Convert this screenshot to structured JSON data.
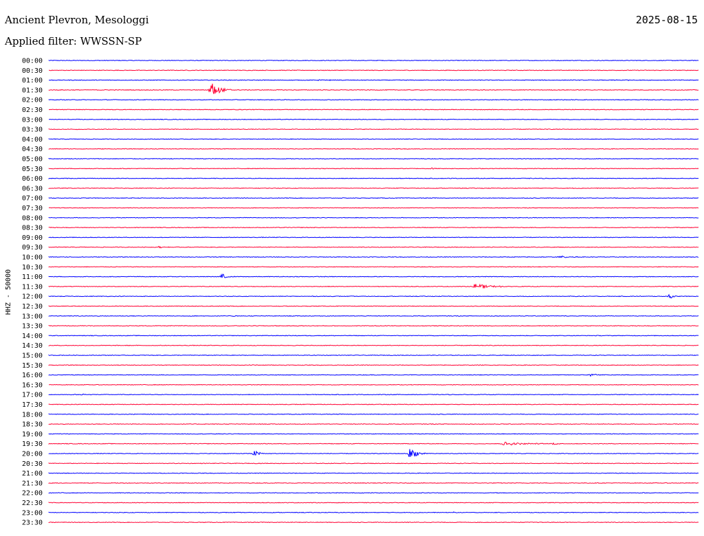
{
  "header": {
    "station": "Ancient Plevron, Mesologgi",
    "date": "2025-08-15",
    "filter": "Applied filter: WWSSN-SP"
  },
  "colors": {
    "blue": "#0000ff",
    "red": "#ff0033"
  },
  "chart_data": {
    "type": "line",
    "title": "Ancient Plevron, Mesologgi",
    "ylabel": "HHZ - 50000",
    "row_labels": [
      "00:00",
      "00:30",
      "01:00",
      "01:30",
      "02:00",
      "02:30",
      "03:00",
      "03:30",
      "04:00",
      "04:30",
      "05:00",
      "05:30",
      "06:00",
      "06:30",
      "07:00",
      "07:30",
      "08:00",
      "08:30",
      "09:00",
      "09:30",
      "10:00",
      "10:30",
      "11:00",
      "11:30",
      "12:00",
      "12:30",
      "13:00",
      "13:30",
      "14:00",
      "14:30",
      "15:00",
      "15:30",
      "16:00",
      "16:30",
      "17:00",
      "17:30",
      "18:00",
      "18:30",
      "19:00",
      "19:30",
      "20:00",
      "20:30",
      "21:00",
      "21:30",
      "22:00",
      "22:30",
      "23:00",
      "23:30"
    ],
    "series": [
      {
        "name": "blue",
        "rows": "even"
      },
      {
        "name": "red",
        "rows": "odd"
      }
    ],
    "row_minutes": 30,
    "events": [
      {
        "row": "01:30",
        "minute": 7.5,
        "amp": 1.75,
        "dur": 1.0
      },
      {
        "row": "01:00",
        "minute": 12.5,
        "amp": 0.1,
        "dur": 0.6
      },
      {
        "row": "01:00",
        "minute": 12.9,
        "amp": 0.1,
        "dur": 0.5
      },
      {
        "row": "01:00",
        "minute": 26.0,
        "amp": 0.15,
        "dur": 0.5
      },
      {
        "row": "01:00",
        "minute": 26.7,
        "amp": 0.15,
        "dur": 0.5
      },
      {
        "row": "03:30",
        "minute": 1.2,
        "amp": 0.15,
        "dur": 0.4
      },
      {
        "row": "05:00",
        "minute": 5.6,
        "amp": 0.1,
        "dur": 0.7
      },
      {
        "row": "05:30",
        "minute": 17.7,
        "amp": 0.15,
        "dur": 0.4
      },
      {
        "row": "09:30",
        "minute": 5.1,
        "amp": 0.2,
        "dur": 0.5
      },
      {
        "row": "10:00",
        "minute": 23.6,
        "amp": 0.25,
        "dur": 1.0
      },
      {
        "row": "11:00",
        "minute": 8.0,
        "amp": 0.6,
        "dur": 0.6
      },
      {
        "row": "11:30",
        "minute": 19.7,
        "amp": 0.7,
        "dur": 1.5
      },
      {
        "row": "12:00",
        "minute": 28.7,
        "amp": 0.6,
        "dur": 0.3
      },
      {
        "row": "13:00",
        "minute": 8.6,
        "amp": 0.3,
        "dur": 0.3
      },
      {
        "row": "15:30",
        "minute": 9.3,
        "amp": 0.1,
        "dur": 1.2
      },
      {
        "row": "16:00",
        "minute": 25.0,
        "amp": 0.3,
        "dur": 1.0
      },
      {
        "row": "17:00",
        "minute": 1.6,
        "amp": 0.15,
        "dur": 0.4
      },
      {
        "row": "19:30",
        "minute": 21.0,
        "amp": 0.4,
        "dur": 2.3
      },
      {
        "row": "19:30",
        "minute": 23.3,
        "amp": 0.2,
        "dur": 0.7
      },
      {
        "row": "20:00",
        "minute": 9.5,
        "amp": 0.6,
        "dur": 0.7
      },
      {
        "row": "20:00",
        "minute": 16.7,
        "amp": 1.3,
        "dur": 0.8
      },
      {
        "row": "23:00",
        "minute": 18.7,
        "amp": 0.1,
        "dur": 0.3
      }
    ]
  }
}
